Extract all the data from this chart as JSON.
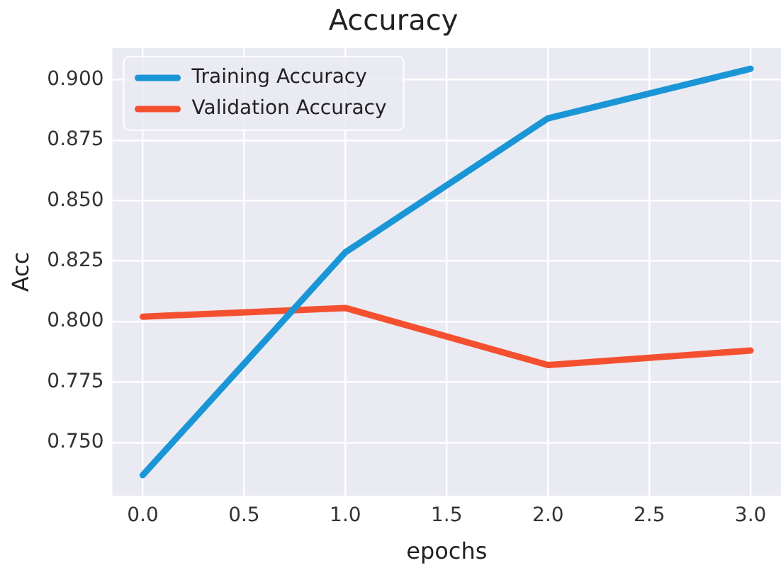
{
  "chart_data": {
    "type": "line",
    "title": "Accuracy",
    "xlabel": "epochs",
    "ylabel": "Acc",
    "x": [
      0,
      1,
      2,
      3
    ],
    "series": [
      {
        "name": "Training Accuracy",
        "color": "#1a96d6",
        "values": [
          0.7365,
          0.8286,
          0.884,
          0.9045
        ]
      },
      {
        "name": "Validation Accuracy",
        "color": "#f4502f",
        "values": [
          0.802,
          0.8056,
          0.782,
          0.788
        ]
      }
    ],
    "xlim": [
      -0.15,
      3.15
    ],
    "xticks": [
      {
        "value": 0,
        "label": "0.0"
      },
      {
        "value": 0.5,
        "label": "0.5"
      },
      {
        "value": 1,
        "label": "1.0"
      },
      {
        "value": 1.5,
        "label": "1.5"
      },
      {
        "value": 2,
        "label": "2.0"
      },
      {
        "value": 2.5,
        "label": "2.5"
      },
      {
        "value": 3,
        "label": "3.0"
      }
    ],
    "ylim": [
      0.728,
      0.913
    ],
    "yticks": [
      {
        "value": 0.75,
        "label": "0.750"
      },
      {
        "value": 0.775,
        "label": "0.775"
      },
      {
        "value": 0.8,
        "label": "0.800"
      },
      {
        "value": 0.825,
        "label": "0.825"
      },
      {
        "value": 0.85,
        "label": "0.850"
      },
      {
        "value": 0.875,
        "label": "0.875"
      },
      {
        "value": 0.9,
        "label": "0.900"
      }
    ],
    "grid": true,
    "legend": "top left",
    "marker": "none",
    "line_style": "solid"
  }
}
